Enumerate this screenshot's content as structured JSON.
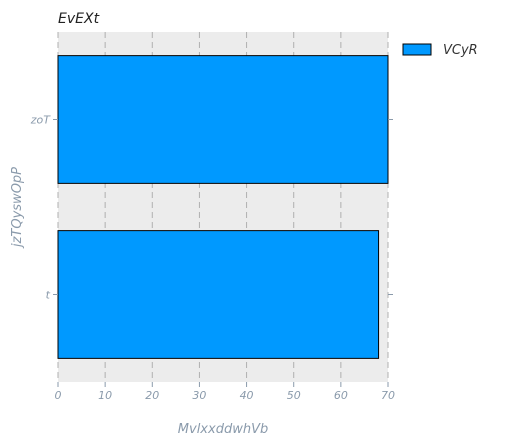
{
  "chart_data": {
    "type": "bar",
    "orientation": "horizontal",
    "title": "EvEXt",
    "xlabel": "MvlxxddwhVb",
    "ylabel": "jzTQyswOpP",
    "categories": [
      "t",
      "zoT"
    ],
    "series": [
      {
        "name": "VCyR",
        "values": [
          68,
          70
        ],
        "color": "#0099ff"
      }
    ],
    "xlim": [
      0,
      70
    ],
    "xticks": [
      0,
      10,
      20,
      30,
      40,
      50,
      60,
      70
    ],
    "grid": true,
    "grid_axis": "x",
    "legend_position": "top-right",
    "colors": {
      "plot_background": "#ececec",
      "bar_edge": "#000000",
      "grid": "#b0b0b0",
      "text_muted": "#8a9aab"
    }
  }
}
